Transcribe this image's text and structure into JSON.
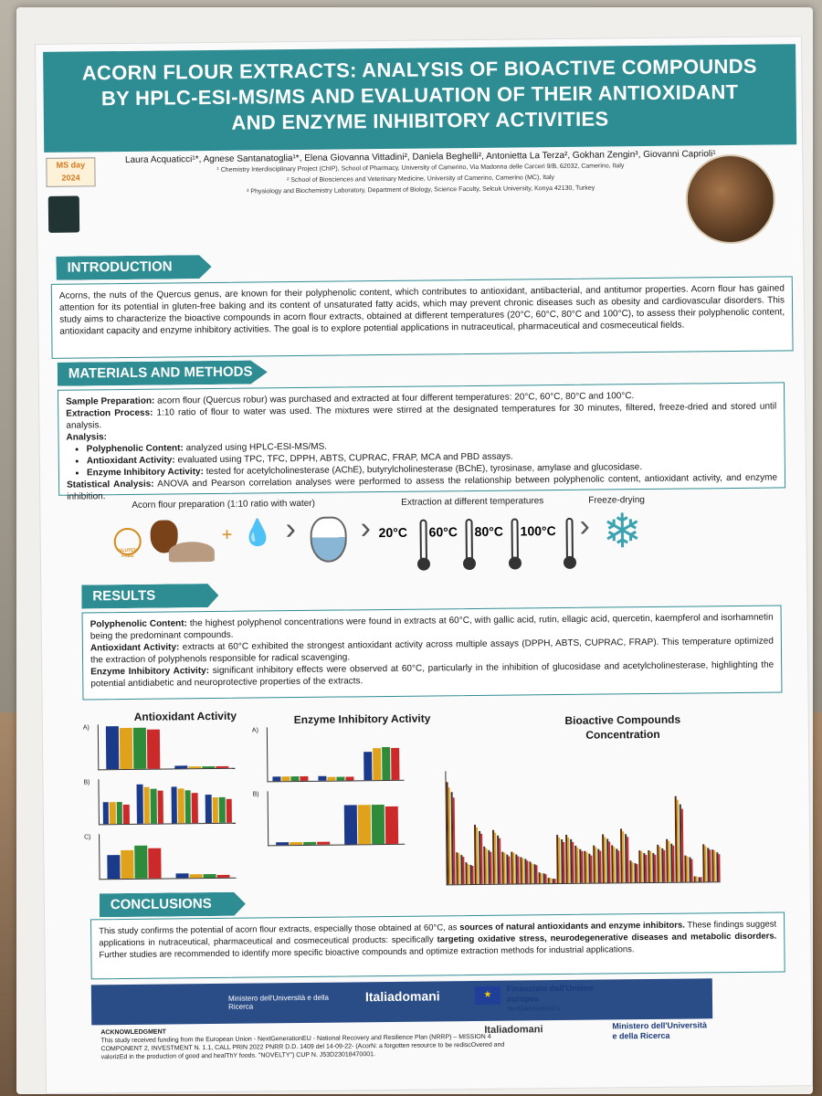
{
  "title": "ACORN FLOUR EXTRACTS: ANALYSIS OF BIOACTIVE COMPOUNDS BY HPLC-ESI-MS/MS AND EVALUATION OF THEIR ANTIOXIDANT AND ENZYME INHIBITORY ACTIVITIES",
  "authors": "Laura Acquaticci¹*, Agnese Santanatoglia¹*, Elena Giovanna Vittadini², Daniela Beghelli², Antonietta La Terza², Gokhan Zengin³, Giovanni Caprioli¹",
  "affiliations": [
    "¹ Chemistry Interdisciplinary Project (ChIP), School of Pharmacy, University of Camerino, Via Madonna delle Carceri 9/B, 62032, Camerino, Italy",
    "² School of Biosciences and Veterinary Medicine, University of Camerino, Camerino (MC), Italy",
    "³ Physiology and Biochemistry Laboratory, Department of Biology, Science Faculty, Selcuk University, Konya 42130, Turkey"
  ],
  "logo_ms": "MS day 2024",
  "introduction": {
    "heading": "INTRODUCTION",
    "text": "Acorns, the nuts of the Quercus genus, are known for their polyphenolic content, which contributes to antioxidant, antibacterial, and antitumor properties. Acorn flour has gained attention for its potential in gluten-free baking and its content of unsaturated fatty acids, which may prevent chronic diseases such as obesity and cardiovascular disorders. This study aims to characterize the bioactive compounds in acorn flour extracts, obtained at different temperatures (20°C, 60°C, 80°C and 100°C), to assess their polyphenolic content, antioxidant capacity and enzyme inhibitory activities. The goal is to explore potential applications in nutraceutical, pharmaceutical and cosmeceutical fields."
  },
  "methods": {
    "heading": "MATERIALS AND METHODS",
    "sample_label": "Sample Preparation:",
    "sample_text": "acorn flour (Quercus robur) was purchased and extracted at four different temperatures: 20°C, 60°C, 80°C and 100°C.",
    "extraction_label": "Extraction Process:",
    "extraction_text": "1:10 ratio of flour to water was used. The mixtures were stirred at the designated temperatures for 30 minutes, filtered, freeze-dried and stored until analysis.",
    "analysis_label": "Analysis:",
    "poly_label": "Polyphenolic Content:",
    "poly_text": "analyzed using HPLC-ESI-MS/MS.",
    "anti_label": "Antioxidant Activity:",
    "anti_text": "evaluated using TPC, TFC, DPPH, ABTS, CUPRAC, FRAP, MCA and PBD assays.",
    "enz_label": "Enzyme Inhibitory Activity:",
    "enz_text": "tested for acetylcholinesterase (AChE), butyrylcholinesterase (BChE), tyrosinase, amylase and glucosidase.",
    "stat_label": "Statistical Analysis:",
    "stat_text": "ANOVA and Pearson correlation analyses were performed to assess the relationship between polyphenolic content, antioxidant activity, and enzyme inhibition."
  },
  "process": {
    "prep_label": "Acorn flour preparation (1:10 ratio with water)",
    "extract_label": "Extraction at different temperatures",
    "freeze_label": "Freeze-drying",
    "gluten_label": "GLUTEN FREE",
    "temps": [
      "20°C",
      "60°C",
      "80°C",
      "100°C"
    ],
    "temp_colors": [
      "#1b2a6b",
      "#d68a1c",
      "#1a1a1a",
      "#b5242a"
    ]
  },
  "results": {
    "heading": "RESULTS",
    "poly_label": "Polyphenolic Content:",
    "poly_text": "the highest polyphenol concentrations were found in extracts at 60°C, with gallic acid, rutin, ellagic acid, quercetin, kaempferol and isorhamnetin being the predominant compounds.",
    "anti_label": "Antioxidant Activity:",
    "anti_text": "extracts at 60°C exhibited the strongest antioxidant activity across multiple assays (DPPH, ABTS, CUPRAC, FRAP). This temperature optimized the extraction of polyphenols responsible for radical scavenging.",
    "enz_label": "Enzyme Inhibitory Activity:",
    "enz_text": "significant inhibitory effects were observed at 60°C, particularly in the inhibition of glucosidase and acetylcholinesterase, highlighting the potential antidiabetic and neuroprotective properties of the extracts."
  },
  "chart_data": [
    {
      "type": "bar",
      "title": "Antioxidant Activity",
      "series_colors": [
        "#1b3a8a",
        "#e0a21a",
        "#2e8b3a",
        "#cc2a2a"
      ],
      "panels": [
        {
          "label": "A)",
          "values": [
            [
              1.0,
              0.95,
              0.95,
              0.9
            ],
            [
              0.06,
              0.05,
              0.05,
              0.04
            ]
          ]
        },
        {
          "label": "B)",
          "values": [
            [
              0.5,
              0.5,
              0.5,
              0.45
            ],
            [
              0.9,
              0.85,
              0.8,
              0.75
            ],
            [
              0.85,
              0.8,
              0.75,
              0.7
            ],
            [
              0.65,
              0.6,
              0.6,
              0.55
            ]
          ]
        },
        {
          "label": "C)",
          "values": [
            [
              0.55,
              0.65,
              0.75,
              0.7
            ],
            [
              0.1,
              0.08,
              0.08,
              0.07
            ]
          ]
        }
      ]
    },
    {
      "type": "bar",
      "title": "Enzyme Inhibitory Activity",
      "series_colors": [
        "#1b3a8a",
        "#e0a21a",
        "#2e8b3a",
        "#cc2a2a"
      ],
      "panels": [
        {
          "label": "A)",
          "values": [
            [
              0.08,
              0.08,
              0.08,
              0.08
            ],
            [
              0.08,
              0.07,
              0.07,
              0.07
            ],
            [
              0.55,
              0.62,
              0.64,
              0.62
            ]
          ]
        },
        {
          "label": "B)",
          "values": [
            [
              0.06,
              0.05,
              0.05,
              0.05
            ],
            [
              0.75,
              0.75,
              0.75,
              0.72
            ]
          ]
        }
      ]
    },
    {
      "type": "bar",
      "title": "Bioactive Compounds Concentration",
      "series_colors": [
        "#5a2a10",
        "#e0a21a",
        "#333333",
        "#cc2a2a"
      ],
      "values": [
        0.95,
        0.3,
        0.2,
        0.55,
        0.35,
        0.5,
        0.3,
        0.3,
        0.25,
        0.2,
        0.1,
        0.05,
        0.45,
        0.45,
        0.35,
        0.3,
        0.35,
        0.45,
        0.35,
        0.5,
        0.2,
        0.3,
        0.3,
        0.35,
        0.4,
        0.8,
        0.25,
        0.05,
        0.35,
        0.3
      ]
    }
  ],
  "conclusions": {
    "heading": "CONCLUSIONS",
    "text_a": "This study confirms the potential of acorn flour extracts, especially those obtained at 60°C, as ",
    "bold_a": "sources of natural antioxidants and enzyme inhibitors.",
    "text_b": " These findings suggest applications in nutraceutical, pharmaceutical and cosmeceutical products: specifically ",
    "bold_b": "targeting oxidative stress, neurodegenerative diseases and metabolic disorders.",
    "text_c": " Further studies are recommended to identify more specific bioactive compounds and optimize extraction methods for industrial applications."
  },
  "ack": {
    "heading": "ACKNOWLEDGMENT",
    "text": "This study received funding from the European Union - NextGenerationEU - National Recovery and Resilience Plan (NRRP) – MISSION 4 COMPONENT 2, INVESTMENT N. 1.1, CALL PRIN 2022 PNRR D.D. 1409 del 14-09-22- (AcorN: a forgotten resource to be rediscOvered and valorizEd in the production of good and healThY foods. \"NOVELTY\") CUP N. J53D23018470001."
  },
  "funders": {
    "band_a": "Ministero dell'Università e della Ricerca",
    "band_b": "Italiadomani",
    "eu_title": "Finanziato dall'Unione europea",
    "eu_sub": "NextGenerationEU",
    "italiadomani": "Italiadomani",
    "mur": "Ministero dell'Università e della Ricerca"
  }
}
